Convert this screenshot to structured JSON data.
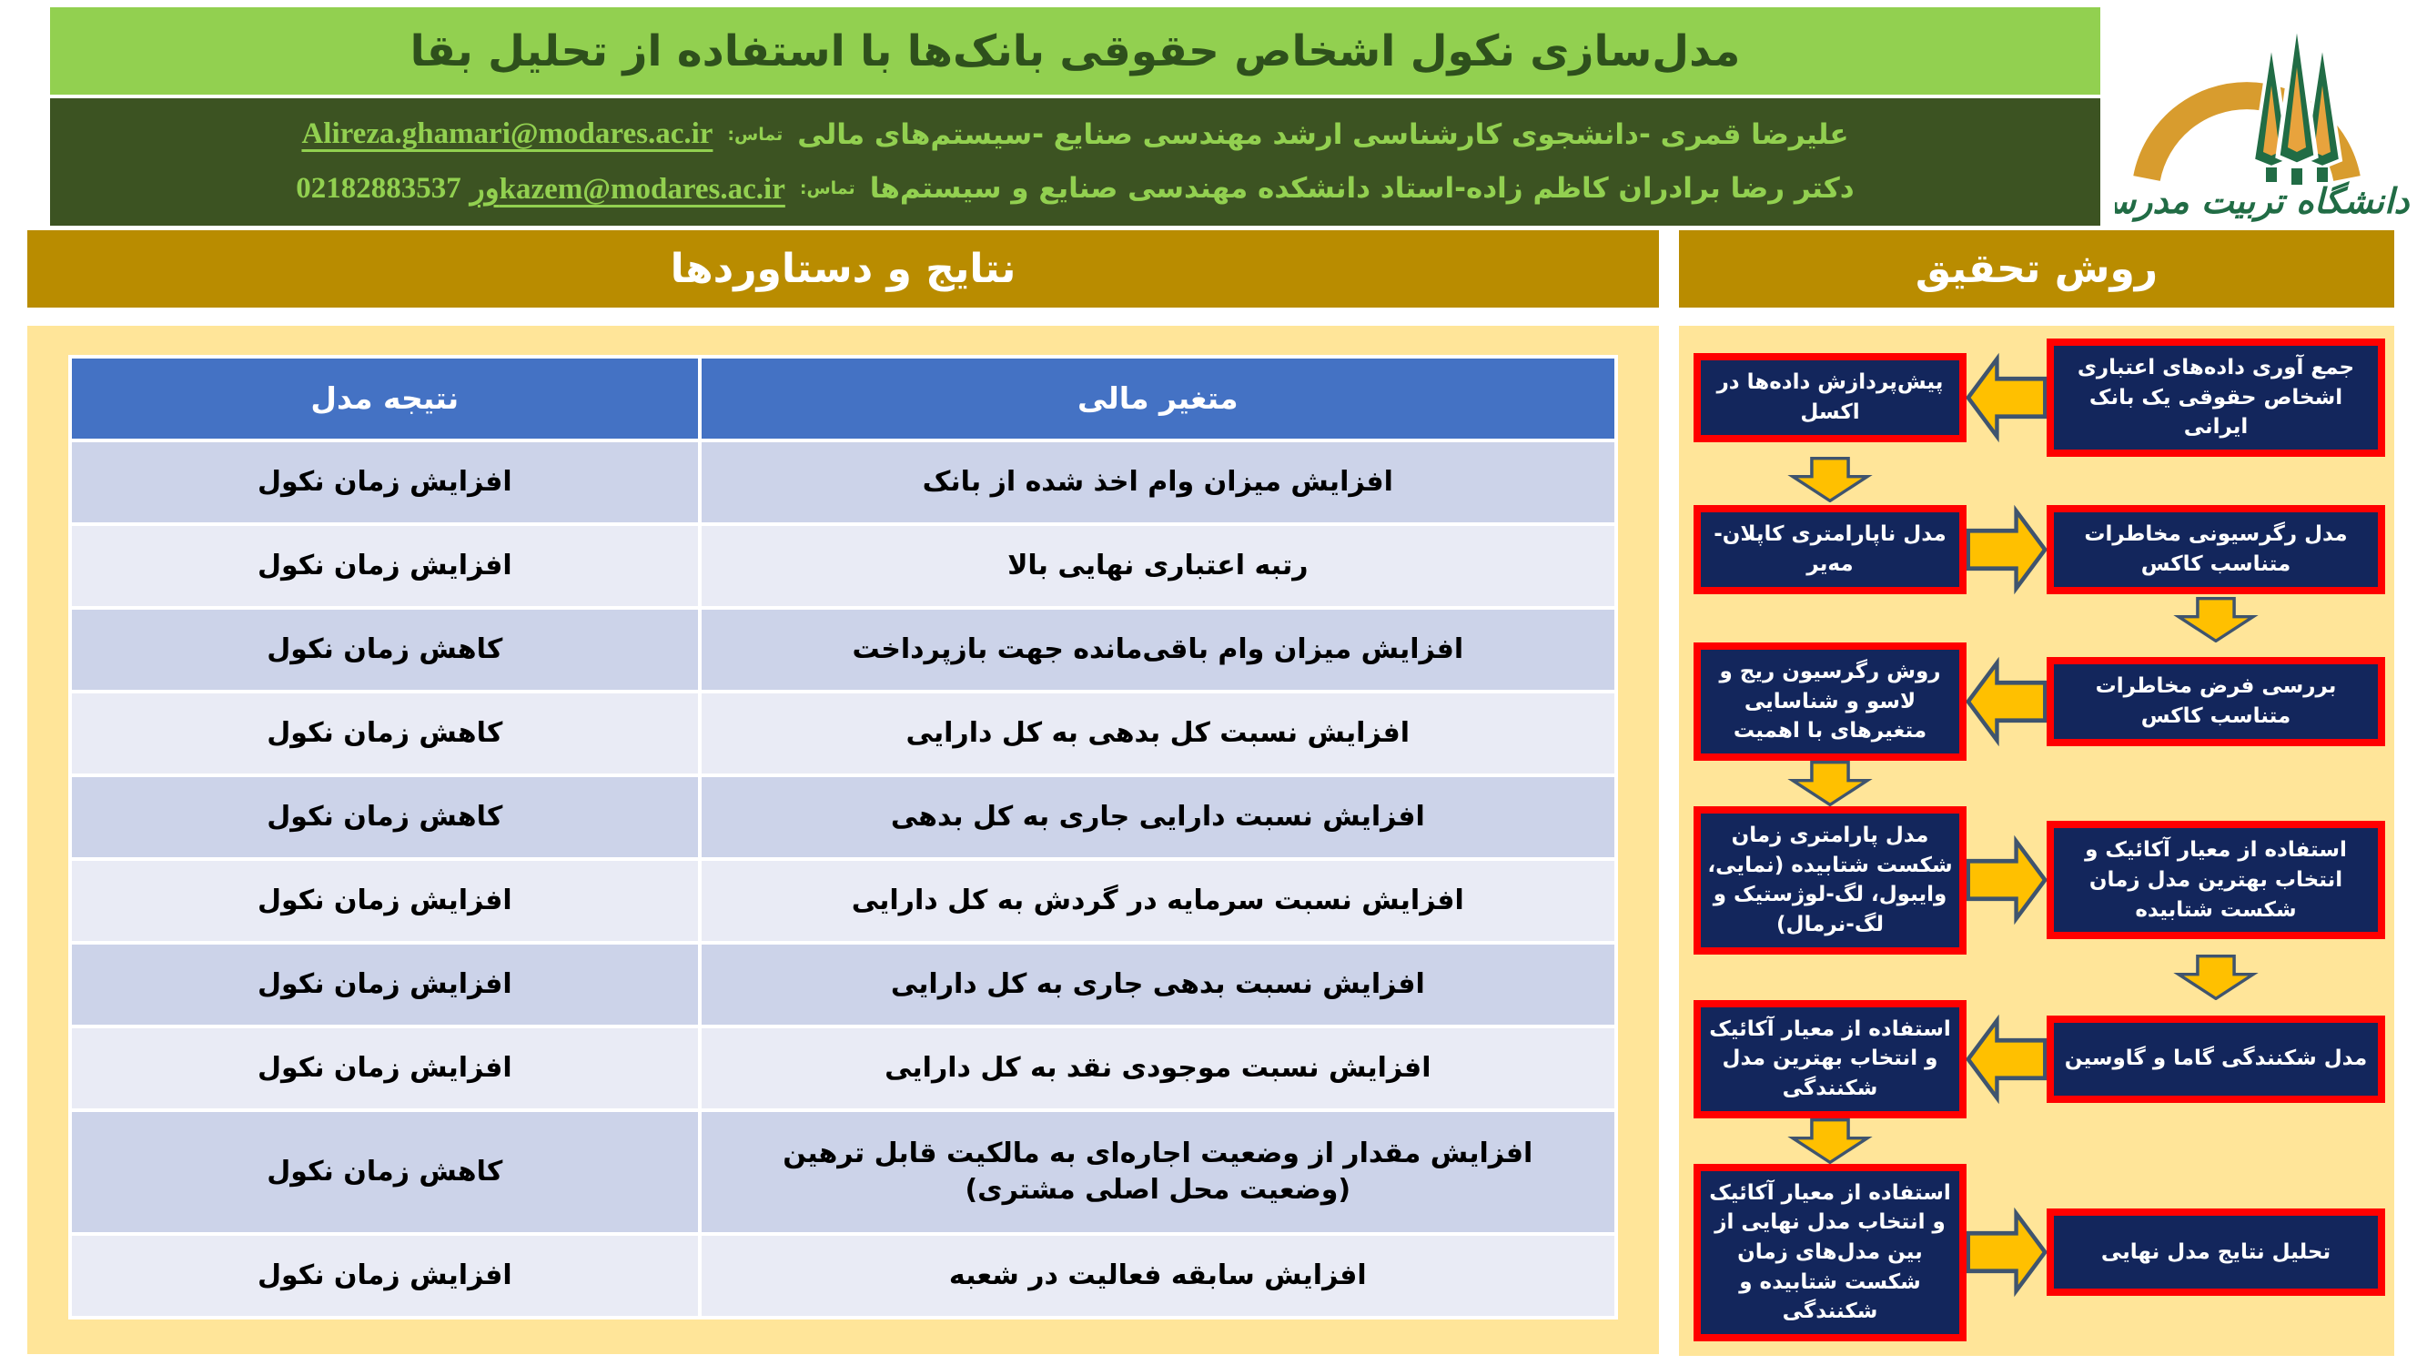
{
  "header": {
    "title": "مدل‌سازی نکول اشخاص حقوقی بانک‌ها با استفاده از تحلیل بقا",
    "authors": [
      {
        "text": "علیرضا قمری -دانشجوی کارشناسی ارشد مهندسی صنایع -سیستم‌های مالی",
        "contact_label": "تماس:",
        "email": "Alireza.ghamari@modares.ac.ir"
      },
      {
        "text": "دکتر رضا برادران کاظم زاده-استاد دانشکده مهندسی صنایع و سیستم‌ها",
        "contact_label": "تماس:",
        "email": "ورkazem@modares.ac.ir",
        "phone": "02182883537"
      }
    ],
    "logo_caption": "دانشگاه تربیت مدرس"
  },
  "sections": {
    "results_title": "نتایج و دستاوردها",
    "method_title": "روش تحقیق"
  },
  "table": {
    "headers": {
      "variable": "متغیر مالی",
      "result": "نتیجه مدل"
    },
    "rows": [
      {
        "variable": "افزایش میزان وام اخذ شده از بانک",
        "result": "افزایش زمان نکول"
      },
      {
        "variable": "رتبه اعتباری نهایی بالا",
        "result": "افزایش زمان نکول"
      },
      {
        "variable": "افزایش میزان وام باقی‌مانده جهت بازپرداخت",
        "result": "کاهش زمان نکول"
      },
      {
        "variable": "افزایش نسبت کل بدهی به کل دارایی",
        "result": "کاهش زمان نکول"
      },
      {
        "variable": "افزایش نسبت دارایی جاری به کل بدهی",
        "result": "کاهش زمان نکول"
      },
      {
        "variable": "افزایش نسبت سرمایه در گردش به کل دارایی",
        "result": "افزایش زمان نکول"
      },
      {
        "variable": "افزایش نسبت بدهی جاری به کل دارایی",
        "result": "افزایش زمان نکول"
      },
      {
        "variable": "افزایش نسبت موجودی نقد به کل دارایی",
        "result": "افزایش زمان نکول"
      },
      {
        "variable": "افزایش مقدار از وضعیت اجاره‌ای به مالکیت قابل ترهین (وضعیت محل اصلی مشتری)",
        "result": "کاهش زمان نکول"
      },
      {
        "variable": "افزایش سابقه فعالیت در شعبه",
        "result": "افزایش زمان نکول"
      }
    ]
  },
  "flowchart": {
    "rows": [
      {
        "right": "جمع آوری داده‌های اعتباری اشخاص حقوقی یک بانک ایرانی",
        "left": "پیش‌پردازش داده‌ها در اکسل",
        "arrow": "left",
        "down": "left"
      },
      {
        "right": "مدل رگرسیونی مخاطرات متناسب کاکس",
        "left": "مدل ناپارامتری کاپلان-مه‌یر",
        "arrow": "right",
        "down": "right"
      },
      {
        "right": "بررسی فرض مخاطرات متناسب کاکس",
        "left": "روش رگرسیون ریج و لاسو و شناسایی متغیرهای با اهمیت",
        "arrow": "left",
        "down": "left"
      },
      {
        "right": "استفاده از معیار آکائیک و انتخاب بهترین مدل زمان شکست شتابیده",
        "left": "مدل پارامتری زمان شکست شتابیده (نمایی، وایبول، لگ-لوژستیک و لگ-نرمال)",
        "arrow": "right",
        "down": "right"
      },
      {
        "right": "مدل شکنندگی گاما و گاوسین",
        "left": "استفاده از معیار آکائیک و انتخاب بهترین مدل شکنندگی",
        "arrow": "left",
        "down": "left"
      },
      {
        "right": "تحلیل نتایج مدل نهایی",
        "left": "استفاده از معیار آکائیک و انتخاب مدل نهایی از بین مدل‌های زمان شکست شتابیده و شکنندگی",
        "arrow": "right",
        "down": null
      }
    ]
  },
  "colors": {
    "title_bar_bg": "#92D050",
    "title_text": "#2E501C",
    "author_bar_bg": "#3C5322",
    "author_text": "#92D050",
    "section_header_bg": "#B98C00",
    "panel_bg": "#FFE599",
    "table_header_bg": "#4472C4",
    "row_dark": "#CCD3E9",
    "row_light": "#E9EBF5",
    "flow_box_bg": "#13265C",
    "flow_box_border": "#FF0000",
    "arrow_fill": "#FFC000",
    "arrow_stroke": "#3F546E"
  }
}
